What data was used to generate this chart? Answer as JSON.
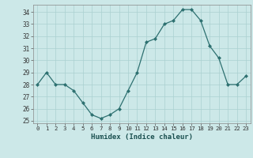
{
  "x": [
    0,
    1,
    2,
    3,
    4,
    5,
    6,
    7,
    8,
    9,
    10,
    11,
    12,
    13,
    14,
    15,
    16,
    17,
    18,
    19,
    20,
    21,
    22,
    23
  ],
  "y": [
    28.0,
    29.0,
    28.0,
    28.0,
    27.5,
    26.5,
    25.5,
    25.2,
    25.5,
    26.0,
    27.5,
    29.0,
    31.5,
    31.8,
    33.0,
    33.3,
    34.2,
    34.2,
    33.3,
    31.2,
    30.2,
    28.0,
    28.0,
    28.7
  ],
  "xlabel": "Humidex (Indice chaleur)",
  "ylim": [
    24.8,
    34.6
  ],
  "yticks": [
    25,
    26,
    27,
    28,
    29,
    30,
    31,
    32,
    33,
    34
  ],
  "xticks": [
    0,
    1,
    2,
    3,
    4,
    5,
    6,
    7,
    8,
    9,
    10,
    11,
    12,
    13,
    14,
    15,
    16,
    17,
    18,
    19,
    20,
    21,
    22,
    23
  ],
  "line_color": "#2d7070",
  "marker_color": "#2d7070",
  "bg_color": "#cce8e8",
  "grid_color": "#aad0d0",
  "axes_bg": "#cce8e8"
}
